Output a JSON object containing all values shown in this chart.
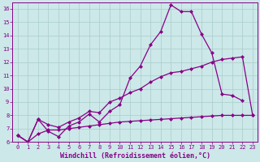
{
  "xlabel": "Windchill (Refroidissement éolien,°C)",
  "background_color": "#cce8e8",
  "line_color": "#880088",
  "grid_color": "#aacccc",
  "xlim": [
    -0.5,
    23.5
  ],
  "ylim": [
    6,
    16.5
  ],
  "x_ticks": [
    0,
    1,
    2,
    3,
    4,
    5,
    6,
    7,
    8,
    9,
    10,
    11,
    12,
    13,
    14,
    15,
    16,
    17,
    18,
    19,
    20,
    21,
    22,
    23
  ],
  "y_ticks": [
    6,
    7,
    8,
    9,
    10,
    11,
    12,
    13,
    14,
    15,
    16
  ],
  "line1_x": [
    0,
    1,
    2,
    3,
    4,
    5,
    6,
    7,
    8,
    9,
    10,
    11,
    12,
    13,
    14,
    15,
    16,
    17,
    18,
    19,
    20,
    21,
    22,
    23
  ],
  "line1_y": [
    6.5,
    6.0,
    7.7,
    6.8,
    6.4,
    7.2,
    7.5,
    8.1,
    7.5,
    8.3,
    8.8,
    10.8,
    11.7,
    13.3,
    14.3,
    16.3,
    15.8,
    15.8,
    14.1,
    12.7,
    9.6,
    9.5,
    9.1,
    null
  ],
  "line2_x": [
    0,
    1,
    2,
    3,
    4,
    5,
    6,
    7,
    8,
    9,
    10,
    11,
    12,
    13,
    14,
    15,
    16,
    17,
    18,
    19,
    20,
    21,
    22,
    23
  ],
  "line2_y": [
    6.5,
    6.0,
    7.7,
    7.3,
    7.1,
    7.5,
    7.8,
    8.3,
    8.2,
    9.0,
    9.3,
    9.7,
    10.0,
    10.5,
    10.9,
    11.2,
    11.3,
    11.5,
    11.7,
    12.0,
    12.2,
    12.3,
    12.4,
    8.0
  ],
  "line3_x": [
    0,
    1,
    2,
    3,
    4,
    5,
    6,
    7,
    8,
    9,
    10,
    11,
    12,
    13,
    14,
    15,
    16,
    17,
    18,
    19,
    20,
    21,
    22,
    23
  ],
  "line3_y": [
    6.5,
    6.0,
    6.6,
    6.9,
    6.9,
    7.0,
    7.1,
    7.2,
    7.3,
    7.4,
    7.5,
    7.55,
    7.6,
    7.65,
    7.7,
    7.75,
    7.8,
    7.85,
    7.9,
    7.95,
    8.0,
    8.0,
    8.0,
    8.0
  ],
  "marker_size": 2.5,
  "line_width": 0.9,
  "tick_fontsize": 5.0,
  "label_fontsize": 6.0
}
